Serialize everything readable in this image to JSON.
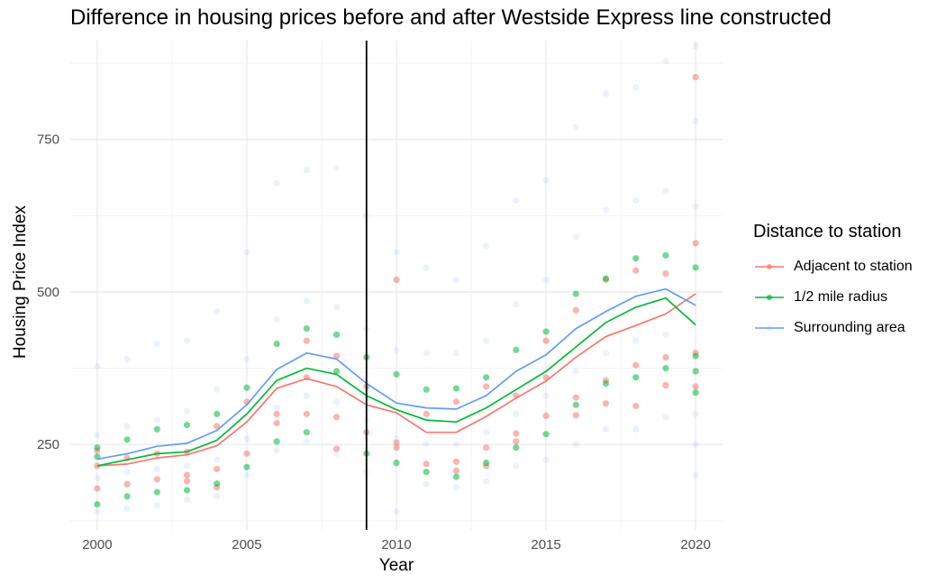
{
  "chart_data": {
    "type": "scatter",
    "title": "Difference in housing prices before and after Westside Express line constructed",
    "xlabel": "Year",
    "ylabel": "Housing Price Index",
    "xlim": [
      1999.1,
      2020.9
    ],
    "ylim": [
      110,
      912
    ],
    "x_ticks": [
      2000,
      2005,
      2010,
      2015,
      2020
    ],
    "y_ticks": [
      250,
      500,
      750
    ],
    "grid": true,
    "vline_x": 2009,
    "legend_title": "Distance to station",
    "legend_position": "right",
    "series": [
      {
        "name": "Adjacent to station",
        "color": "#F8766D",
        "line": [
          [
            2000,
            215
          ],
          [
            2001,
            218
          ],
          [
            2002,
            228
          ],
          [
            2003,
            233
          ],
          [
            2004,
            248
          ],
          [
            2005,
            287
          ],
          [
            2006,
            342
          ],
          [
            2007,
            358
          ],
          [
            2008,
            345
          ],
          [
            2009,
            315
          ],
          [
            2010,
            302
          ],
          [
            2011,
            270
          ],
          [
            2012,
            270
          ],
          [
            2013,
            296
          ],
          [
            2014,
            326
          ],
          [
            2015,
            354
          ],
          [
            2016,
            393
          ],
          [
            2017,
            427
          ],
          [
            2018,
            445
          ],
          [
            2019,
            464
          ],
          [
            2020,
            497
          ]
        ],
        "points": [
          [
            2000,
            215
          ],
          [
            2000,
            178
          ],
          [
            2000,
            240
          ],
          [
            2001,
            185
          ],
          [
            2001,
            228
          ],
          [
            2002,
            193
          ],
          [
            2002,
            235
          ],
          [
            2003,
            190
          ],
          [
            2003,
            200
          ],
          [
            2003,
            238
          ],
          [
            2004,
            210
          ],
          [
            2004,
            180
          ],
          [
            2004,
            280
          ],
          [
            2005,
            235
          ],
          [
            2005,
            320
          ],
          [
            2006,
            285
          ],
          [
            2006,
            300
          ],
          [
            2007,
            300
          ],
          [
            2007,
            360
          ],
          [
            2007,
            420
          ],
          [
            2008,
            243
          ],
          [
            2008,
            295
          ],
          [
            2008,
            395
          ],
          [
            2009,
            270
          ],
          [
            2009,
            345
          ],
          [
            2010,
            520
          ],
          [
            2010,
            253
          ],
          [
            2010,
            245
          ],
          [
            2011,
            218
          ],
          [
            2011,
            300
          ],
          [
            2012,
            222
          ],
          [
            2012,
            207
          ],
          [
            2012,
            320
          ],
          [
            2013,
            215
          ],
          [
            2013,
            245
          ],
          [
            2013,
            345
          ],
          [
            2014,
            268
          ],
          [
            2014,
            255
          ],
          [
            2014,
            330
          ],
          [
            2015,
            297
          ],
          [
            2015,
            360
          ],
          [
            2015,
            420
          ],
          [
            2016,
            327
          ],
          [
            2016,
            298
          ],
          [
            2016,
            470
          ],
          [
            2017,
            355
          ],
          [
            2017,
            317
          ],
          [
            2017,
            520
          ],
          [
            2018,
            380
          ],
          [
            2018,
            313
          ],
          [
            2018,
            535
          ],
          [
            2019,
            393
          ],
          [
            2019,
            347
          ],
          [
            2019,
            530
          ],
          [
            2020,
            852
          ],
          [
            2020,
            400
          ],
          [
            2020,
            580
          ],
          [
            2020,
            345
          ]
        ]
      },
      {
        "name": "1/2 mile radius",
        "color": "#00BA38",
        "line": [
          [
            2000,
            215
          ],
          [
            2001,
            225
          ],
          [
            2002,
            235
          ],
          [
            2003,
            238
          ],
          [
            2004,
            257
          ],
          [
            2005,
            300
          ],
          [
            2006,
            355
          ],
          [
            2007,
            375
          ],
          [
            2008,
            365
          ],
          [
            2009,
            330
          ],
          [
            2010,
            307
          ],
          [
            2011,
            290
          ],
          [
            2012,
            287
          ],
          [
            2013,
            310
          ],
          [
            2014,
            340
          ],
          [
            2015,
            370
          ],
          [
            2016,
            410
          ],
          [
            2017,
            450
          ],
          [
            2018,
            475
          ],
          [
            2019,
            490
          ],
          [
            2020,
            446
          ]
        ],
        "points": [
          [
            2000,
            230
          ],
          [
            2000,
            152
          ],
          [
            2000,
            245
          ],
          [
            2001,
            165
          ],
          [
            2001,
            258
          ],
          [
            2002,
            172
          ],
          [
            2002,
            275
          ],
          [
            2003,
            175
          ],
          [
            2003,
            282
          ],
          [
            2004,
            186
          ],
          [
            2004,
            300
          ],
          [
            2005,
            213
          ],
          [
            2005,
            343
          ],
          [
            2006,
            255
          ],
          [
            2006,
            415
          ],
          [
            2007,
            270
          ],
          [
            2007,
            440
          ],
          [
            2008,
            370
          ],
          [
            2008,
            430
          ],
          [
            2009,
            235
          ],
          [
            2009,
            393
          ],
          [
            2010,
            220
          ],
          [
            2010,
            365
          ],
          [
            2011,
            205
          ],
          [
            2011,
            340
          ],
          [
            2012,
            197
          ],
          [
            2012,
            342
          ],
          [
            2013,
            220
          ],
          [
            2013,
            360
          ],
          [
            2014,
            245
          ],
          [
            2014,
            405
          ],
          [
            2015,
            267
          ],
          [
            2015,
            435
          ],
          [
            2016,
            315
          ],
          [
            2016,
            497
          ],
          [
            2017,
            350
          ],
          [
            2017,
            522
          ],
          [
            2018,
            360
          ],
          [
            2018,
            555
          ],
          [
            2019,
            375
          ],
          [
            2019,
            560
          ],
          [
            2020,
            370
          ],
          [
            2020,
            540
          ],
          [
            2020,
            335
          ],
          [
            2020,
            395
          ]
        ]
      },
      {
        "name": "Surrounding area",
        "color": "#619CFF",
        "line": [
          [
            2000,
            226
          ],
          [
            2001,
            235
          ],
          [
            2002,
            247
          ],
          [
            2003,
            252
          ],
          [
            2004,
            273
          ],
          [
            2005,
            315
          ],
          [
            2006,
            373
          ],
          [
            2007,
            400
          ],
          [
            2008,
            390
          ],
          [
            2009,
            350
          ],
          [
            2010,
            318
          ],
          [
            2011,
            310
          ],
          [
            2012,
            308
          ],
          [
            2013,
            330
          ],
          [
            2014,
            370
          ],
          [
            2015,
            397
          ],
          [
            2016,
            440
          ],
          [
            2017,
            468
          ],
          [
            2018,
            493
          ],
          [
            2019,
            505
          ],
          [
            2020,
            478
          ]
        ],
        "points": [
          [
            2000,
            378
          ],
          [
            2000,
            140
          ],
          [
            2000,
            265
          ],
          [
            2000,
            195
          ],
          [
            2001,
            390
          ],
          [
            2001,
            145
          ],
          [
            2001,
            280
          ],
          [
            2001,
            205
          ],
          [
            2002,
            415
          ],
          [
            2002,
            150
          ],
          [
            2002,
            290
          ],
          [
            2002,
            210
          ],
          [
            2003,
            420
          ],
          [
            2003,
            160
          ],
          [
            2003,
            305
          ],
          [
            2003,
            215
          ],
          [
            2004,
            468
          ],
          [
            2004,
            165
          ],
          [
            2004,
            340
          ],
          [
            2004,
            225
          ],
          [
            2005,
            565
          ],
          [
            2005,
            200
          ],
          [
            2005,
            390
          ],
          [
            2005,
            260
          ],
          [
            2006,
            678
          ],
          [
            2006,
            240
          ],
          [
            2006,
            455
          ],
          [
            2006,
            310
          ],
          [
            2007,
            700
          ],
          [
            2007,
            255
          ],
          [
            2007,
            485
          ],
          [
            2007,
            330
          ],
          [
            2008,
            703
          ],
          [
            2008,
            235
          ],
          [
            2008,
            475
          ],
          [
            2008,
            320
          ],
          [
            2009,
            625
          ],
          [
            2009,
            205
          ],
          [
            2009,
            440
          ],
          [
            2009,
            290
          ],
          [
            2010,
            565
          ],
          [
            2010,
            140
          ],
          [
            2010,
            405
          ],
          [
            2010,
            260
          ],
          [
            2011,
            540
          ],
          [
            2011,
            185
          ],
          [
            2011,
            400
          ],
          [
            2011,
            250
          ],
          [
            2012,
            520
          ],
          [
            2012,
            180
          ],
          [
            2012,
            400
          ],
          [
            2012,
            250
          ],
          [
            2013,
            575
          ],
          [
            2013,
            190
          ],
          [
            2013,
            420
          ],
          [
            2013,
            270
          ],
          [
            2014,
            650
          ],
          [
            2014,
            215
          ],
          [
            2014,
            480
          ],
          [
            2014,
            300
          ],
          [
            2015,
            683
          ],
          [
            2015,
            225
          ],
          [
            2015,
            520
          ],
          [
            2015,
            330
          ],
          [
            2016,
            770
          ],
          [
            2016,
            250
          ],
          [
            2016,
            590
          ],
          [
            2016,
            370
          ],
          [
            2017,
            825
          ],
          [
            2017,
            275
          ],
          [
            2017,
            635
          ],
          [
            2017,
            400
          ],
          [
            2018,
            835
          ],
          [
            2018,
            275
          ],
          [
            2018,
            650
          ],
          [
            2018,
            420
          ],
          [
            2019,
            878
          ],
          [
            2019,
            295
          ],
          [
            2019,
            665
          ],
          [
            2019,
            430
          ],
          [
            2020,
            903
          ],
          [
            2020,
            200
          ],
          [
            2020,
            780
          ],
          [
            2020,
            640
          ],
          [
            2020,
            300
          ],
          [
            2020,
            250
          ]
        ]
      }
    ]
  }
}
